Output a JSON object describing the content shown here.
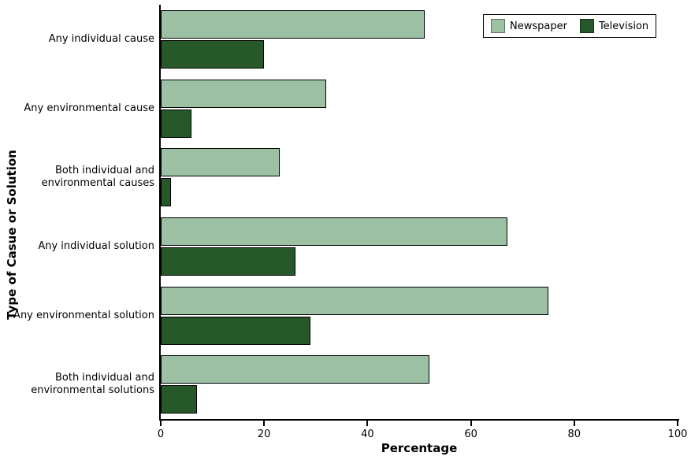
{
  "chart_data": {
    "type": "bar",
    "orientation": "horizontal",
    "title": "",
    "xlabel": "Percentage",
    "ylabel": "Type of Casue or Solution",
    "xlim": [
      0,
      100
    ],
    "x_ticks": [
      0,
      20,
      40,
      60,
      80,
      100
    ],
    "grid": false,
    "legend_position": "top-right",
    "bar_outline_color": "#000000",
    "categories": [
      "Any individual cause",
      "Any environmental cause",
      "Both individual and environmental causes",
      "Any individual solution",
      "Any environmental solution",
      "Both individual and environmental solutions"
    ],
    "category_label_lines": [
      [
        "Any individual cause"
      ],
      [
        "Any environmental cause"
      ],
      [
        "Both individual and",
        "environmental causes"
      ],
      [
        "Any individual solution"
      ],
      [
        "Any environmental solution"
      ],
      [
        "Both individual and",
        "environmental solutions"
      ]
    ],
    "series": [
      {
        "name": "Newspaper",
        "color": "#9cc0a4",
        "values": [
          51,
          32,
          23,
          67,
          75,
          52
        ]
      },
      {
        "name": "Television",
        "color": "#26582a",
        "values": [
          20,
          6,
          2,
          26,
          29,
          7
        ]
      }
    ]
  }
}
